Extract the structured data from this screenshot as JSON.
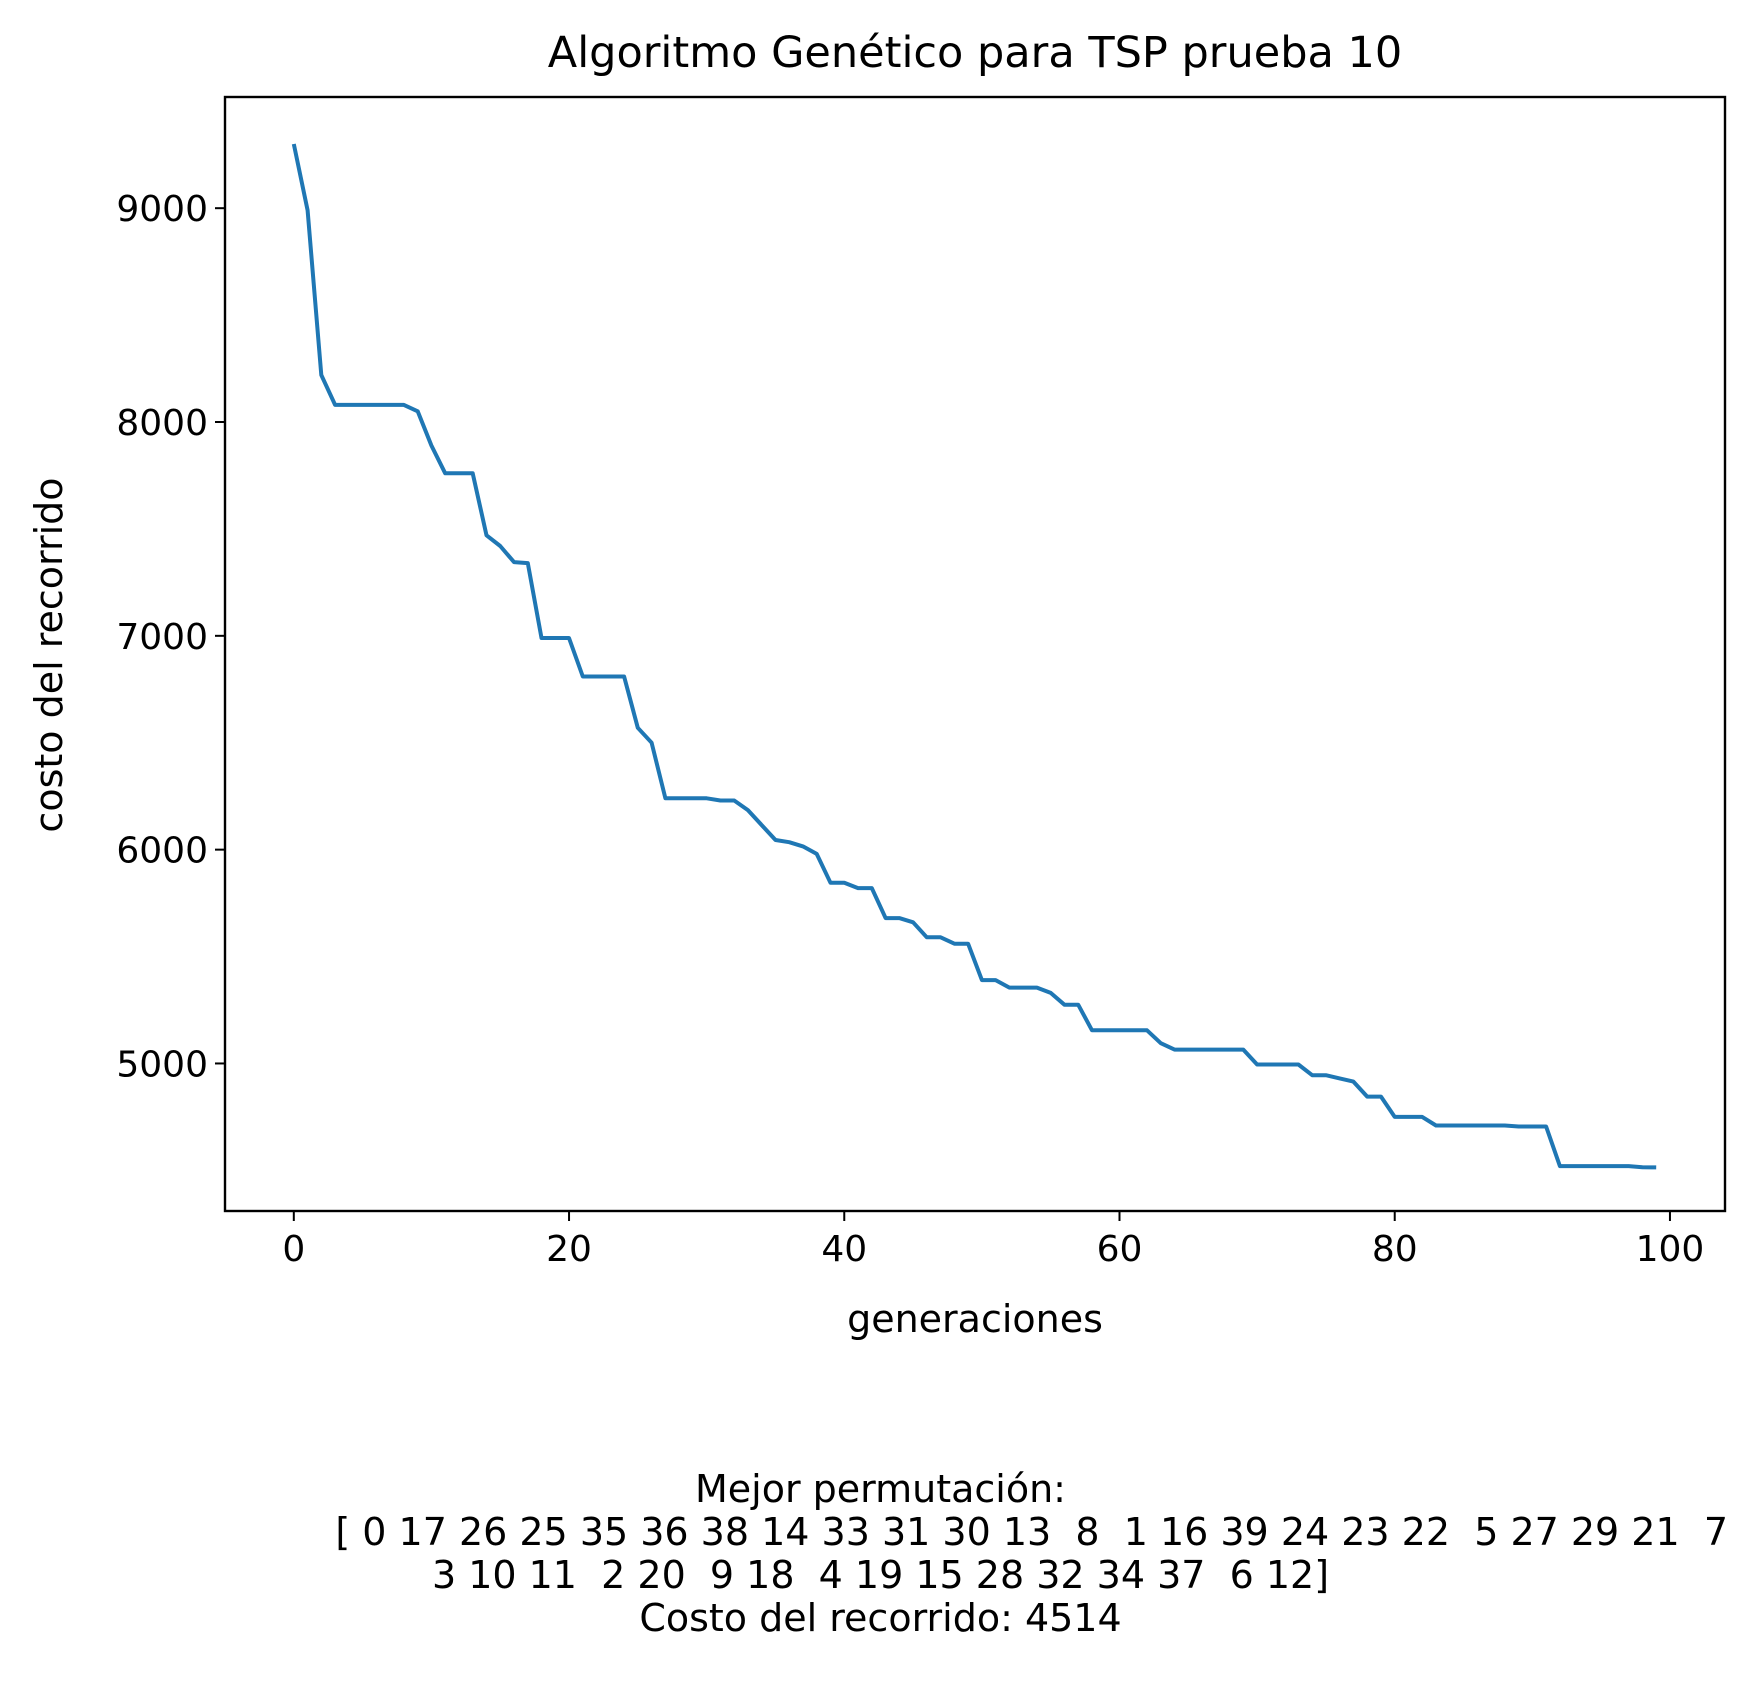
{
  "chart_data": {
    "type": "line",
    "title": "Algoritmo Genético para TSP prueba 10",
    "xlabel": "generaciones",
    "ylabel": "costo del recorrido",
    "xlim": [
      -5,
      104
    ],
    "ylim": [
      4310,
      9520
    ],
    "xticks": [
      0,
      20,
      40,
      60,
      80,
      100
    ],
    "yticks": [
      5000,
      6000,
      7000,
      8000,
      9000
    ],
    "grid": false,
    "series": [
      {
        "color": "#1f77b4",
        "x": [
          0,
          1,
          2,
          3,
          4,
          5,
          6,
          7,
          8,
          9,
          10,
          11,
          12,
          13,
          14,
          15,
          16,
          17,
          18,
          19,
          20,
          21,
          22,
          23,
          24,
          25,
          26,
          27,
          28,
          29,
          30,
          31,
          32,
          33,
          34,
          35,
          36,
          37,
          38,
          39,
          40,
          41,
          42,
          43,
          44,
          45,
          46,
          47,
          48,
          49,
          50,
          51,
          52,
          53,
          54,
          55,
          56,
          57,
          58,
          59,
          60,
          61,
          62,
          63,
          64,
          65,
          66,
          67,
          68,
          69,
          70,
          71,
          72,
          73,
          74,
          75,
          76,
          77,
          78,
          79,
          80,
          81,
          82,
          83,
          84,
          85,
          86,
          87,
          88,
          89,
          90,
          91,
          92,
          93,
          94,
          95,
          96,
          97,
          98,
          99
        ],
        "values": [
          9300,
          8990,
          8220,
          8080,
          8080,
          8080,
          8080,
          8080,
          8080,
          8050,
          7890,
          7760,
          7760,
          7760,
          7470,
          7420,
          7345,
          7340,
          6990,
          6990,
          6990,
          6810,
          6810,
          6810,
          6810,
          6570,
          6500,
          6240,
          6240,
          6240,
          6240,
          6230,
          6230,
          6185,
          6115,
          6045,
          6035,
          6015,
          5980,
          5845,
          5845,
          5820,
          5820,
          5680,
          5680,
          5660,
          5590,
          5590,
          5560,
          5560,
          5390,
          5390,
          5355,
          5355,
          5355,
          5330,
          5275,
          5275,
          5155,
          5155,
          5155,
          5155,
          5155,
          5095,
          5065,
          5065,
          5065,
          5065,
          5065,
          5065,
          4995,
          4995,
          4995,
          4995,
          4945,
          4945,
          4930,
          4915,
          4845,
          4845,
          4750,
          4750,
          4750,
          4710,
          4710,
          4710,
          4710,
          4710,
          4710,
          4705,
          4705,
          4705,
          4520,
          4520,
          4520,
          4520,
          4520,
          4520,
          4515,
          4514
        ]
      }
    ],
    "caption": {
      "line1": "Mejor permutación:",
      "line2": "[ 0 17 26 25 35 36 38 14 33 31 30 13  8  1 16 39 24 23 22  5 27 29 21  7",
      "line3": "3 10 11  2 20  9 18  4 19 15 28 32 34 37  6 12]",
      "line4": "Costo del recorrido: 4514"
    }
  }
}
